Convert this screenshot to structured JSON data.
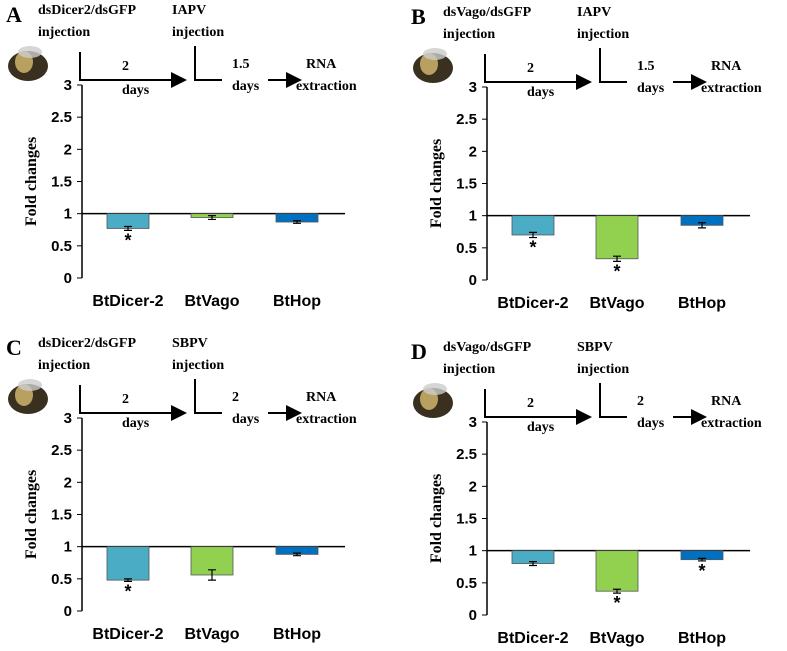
{
  "chart_data": [
    {
      "type": "bar",
      "panel_label": "A",
      "timeline_labels": [
        "dsDicer2/dsGFP",
        "injection",
        "IAPV",
        "injection",
        "2",
        "days",
        "1.5",
        "days",
        "RNA",
        "extraction"
      ],
      "y_label": "Fold changes",
      "categories": [
        "BtDicer-2",
        "BtVago",
        "BtHop"
      ],
      "values": [
        0.77,
        0.94,
        0.87
      ],
      "errors": [
        0.03,
        0.03,
        0.02
      ],
      "value_annotations": [
        "*",
        null,
        null
      ],
      "colors": [
        "#4bacc6",
        "#92d050",
        "#0070c0"
      ],
      "ylim": [
        0,
        3
      ],
      "yticks": [
        0,
        0.5,
        1,
        1.5,
        2,
        2.5,
        3
      ],
      "bar_baseline": 1
    },
    {
      "type": "bar",
      "panel_label": "B",
      "timeline_labels": [
        "dsVago/dsGFP",
        "injection",
        "IAPV",
        "injection",
        "2",
        "days",
        "1.5",
        "days",
        "RNA",
        "extraction"
      ],
      "y_label": "Fold changes",
      "categories": [
        "BtDicer-2",
        "BtVago",
        "BtHop"
      ],
      "values": [
        0.7,
        0.33,
        0.85
      ],
      "errors": [
        0.04,
        0.04,
        0.04
      ],
      "value_annotations": [
        "*",
        "*",
        null
      ],
      "colors": [
        "#4bacc6",
        "#92d050",
        "#0070c0"
      ],
      "ylim": [
        0,
        3
      ],
      "yticks": [
        0,
        0.5,
        1,
        1.5,
        2,
        2.5,
        3
      ],
      "bar_baseline": 1
    },
    {
      "type": "bar",
      "panel_label": "C",
      "timeline_labels": [
        "dsDicer2/dsGFP",
        "injection",
        "SBPV",
        "injection",
        "2",
        "days",
        "2",
        "days",
        "RNA",
        "extraction"
      ],
      "y_label": "Fold changes",
      "categories": [
        "BtDicer-2",
        "BtVago",
        "BtHop"
      ],
      "values": [
        0.48,
        0.56,
        0.88
      ],
      "errors": [
        0.02,
        0.08,
        0.02
      ],
      "value_annotations": [
        "*",
        null,
        null
      ],
      "colors": [
        "#4bacc6",
        "#92d050",
        "#0070c0"
      ],
      "ylim": [
        0,
        3
      ],
      "yticks": [
        0,
        0.5,
        1,
        1.5,
        2,
        2.5,
        3
      ],
      "bar_baseline": 1
    },
    {
      "type": "bar",
      "panel_label": "D",
      "timeline_labels": [
        "dsVago/dsGFP",
        "injection",
        "SBPV",
        "injection",
        "2",
        "days",
        "2",
        "days",
        "RNA",
        "extraction"
      ],
      "y_label": "Fold changes",
      "categories": [
        "BtDicer-2",
        "BtVago",
        "BtHop"
      ],
      "values": [
        0.8,
        0.37,
        0.86
      ],
      "errors": [
        0.03,
        0.03,
        0.02
      ],
      "value_annotations": [
        null,
        "*",
        "*"
      ],
      "colors": [
        "#4bacc6",
        "#92d050",
        "#0070c0"
      ],
      "ylim": [
        0,
        3
      ],
      "yticks": [
        0,
        0.5,
        1,
        1.5,
        2,
        2.5,
        3
      ],
      "bar_baseline": 1
    }
  ]
}
